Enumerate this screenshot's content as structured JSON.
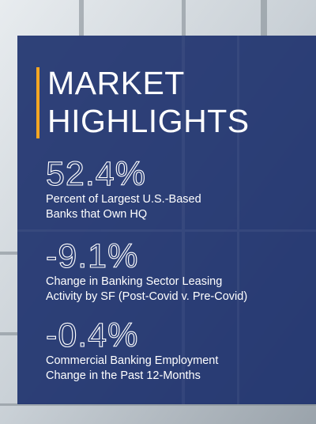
{
  "header": {
    "title_lines": [
      "MARKET",
      "HIGHLIGHTS"
    ]
  },
  "stats": [
    {
      "value": "52.4%",
      "description_lines": [
        "Percent of Largest U.S.-Based",
        "Banks that Own HQ"
      ]
    },
    {
      "value": "-9.1%",
      "description_lines": [
        "Change in Banking Sector Leasing",
        "Activity by SF (Post-Covid v. Pre-Covid)"
      ]
    },
    {
      "value": "-0.4%",
      "description_lines": [
        "Commercial Banking Employment",
        "Change in the Past 12-Months"
      ]
    }
  ]
}
